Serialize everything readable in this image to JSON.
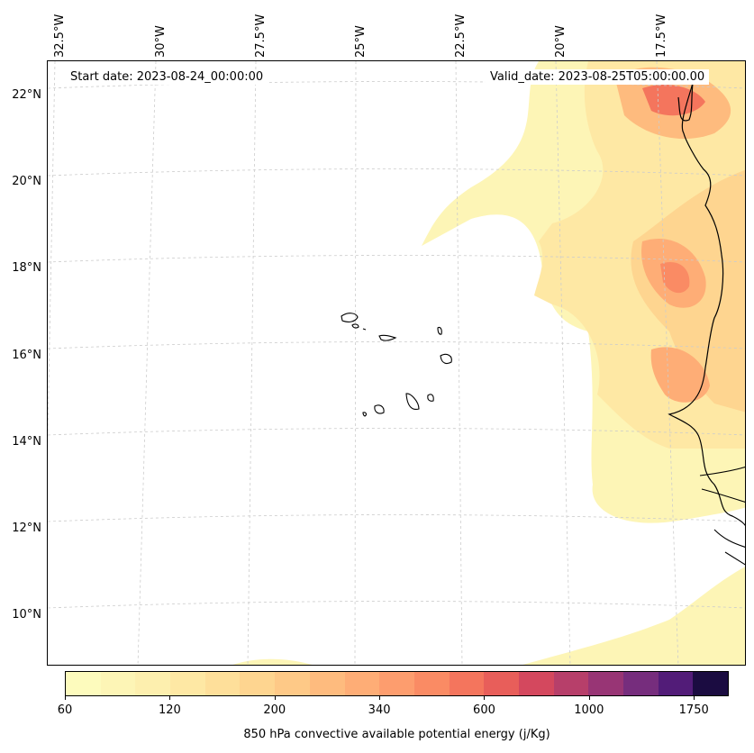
{
  "map": {
    "info": {
      "start": "Start date: 2023-08-24_00:00:00",
      "valid": "Valid_date: 2023-08-25T05:00:00.00"
    },
    "lon_labels": [
      "32.5°W",
      "30°W",
      "27.5°W",
      "25°W",
      "22.5°W",
      "20°W",
      "17.5°W"
    ],
    "lat_labels": [
      "22°N",
      "20°N",
      "18°N",
      "16°N",
      "14°N",
      "12°N",
      "10°N"
    ],
    "region": {
      "lon_range_w": [
        33,
        15.5
      ],
      "lat_range_n": [
        8.8,
        22.8
      ]
    },
    "projection": "conic, gridlines dashed light gray",
    "coastline_color": "#000000"
  },
  "colorbar": {
    "label": "850 hPa convective available potential energy (j/Kg)",
    "tick_labels": [
      "60",
      "120",
      "200",
      "340",
      "600",
      "1000",
      "1750"
    ],
    "colors": [
      "#fdfbbd",
      "#fdf5b6",
      "#fdefae",
      "#fee8a4",
      "#fedf9a",
      "#fed590",
      "#fec987",
      "#febb7e",
      "#fead76",
      "#fd9d6e",
      "#fa8b64",
      "#f4755d",
      "#e85e5a",
      "#d4485e",
      "#b73f6a",
      "#983575",
      "#762d7d",
      "#521c78",
      "#1b0c41"
    ]
  }
}
